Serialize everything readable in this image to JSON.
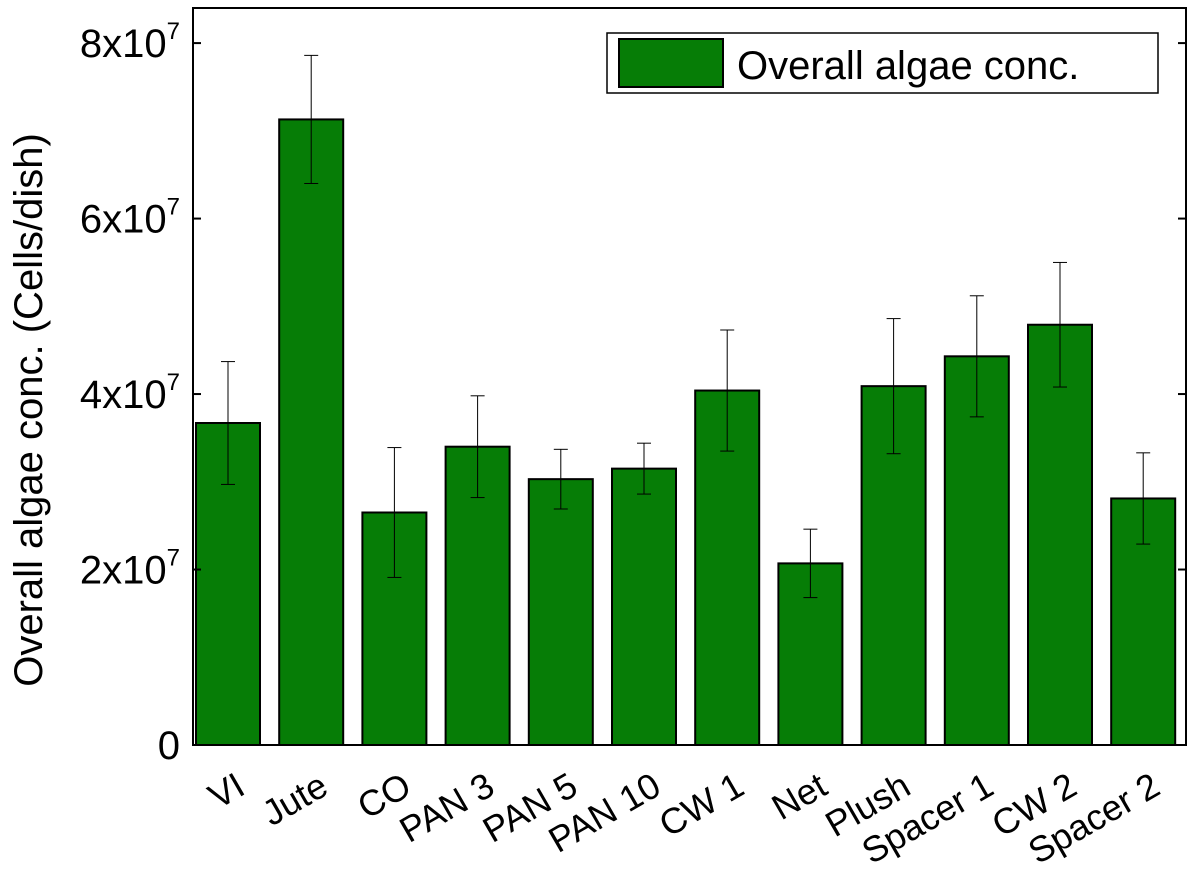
{
  "chart_data": {
    "type": "bar",
    "title": "",
    "xlabel": "",
    "ylabel": "Overall algae conc. (Cells/dish)",
    "ylim": [
      0,
      84000000
    ],
    "y_ticks": [
      {
        "value": 0,
        "mantissa": "0",
        "exponent": ""
      },
      {
        "value": 20000000,
        "mantissa": "2x10",
        "exponent": "7"
      },
      {
        "value": 40000000,
        "mantissa": "4x10",
        "exponent": "7"
      },
      {
        "value": 60000000,
        "mantissa": "6x10",
        "exponent": "7"
      },
      {
        "value": 80000000,
        "mantissa": "8x10",
        "exponent": "7"
      }
    ],
    "grid": false,
    "legend_position": "top-right",
    "categories": [
      "VI",
      "Jute",
      "CO",
      "PAN 3",
      "PAN 5",
      "PAN 10",
      "CW 1",
      "Net",
      "Plush",
      "Spacer 1",
      "CW 2",
      "Spacer 2"
    ],
    "series": [
      {
        "name": "Overall algae conc.",
        "color": "#067d06",
        "values": [
          36700000,
          71300000,
          26500000,
          34000000,
          30300000,
          31500000,
          40400000,
          20700000,
          40900000,
          44300000,
          47900000,
          28100000
        ],
        "errors": [
          7000000,
          7300000,
          7400000,
          5800000,
          3400000,
          2900000,
          6900000,
          3900000,
          7700000,
          6900000,
          7100000,
          5200000
        ]
      }
    ]
  }
}
